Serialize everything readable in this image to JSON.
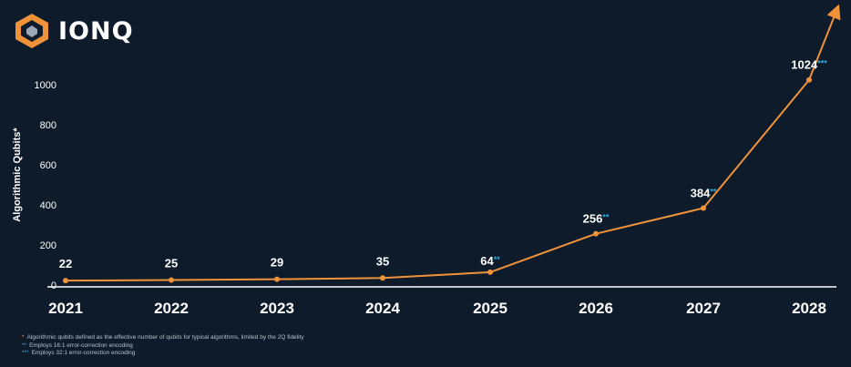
{
  "brand": {
    "name": "IONQ",
    "colors": {
      "background": "#0d1b2a",
      "line": "#f0923a",
      "asterisk": "#2fa9e0",
      "text": "#ffffff"
    }
  },
  "chart_data": {
    "type": "line",
    "x": [
      "2021",
      "2022",
      "2023",
      "2024",
      "2025",
      "2026",
      "2027",
      "2028"
    ],
    "series": [
      {
        "values": [
          22,
          25,
          29,
          35,
          64,
          256,
          384,
          1024
        ]
      }
    ],
    "data_labels": [
      "22",
      "25",
      "29",
      "35",
      "64",
      "256",
      "384",
      "1024"
    ],
    "label_marks": [
      "",
      "",
      "",
      "",
      "**",
      "**",
      "**",
      "***"
    ],
    "ylabel": "Algorithmic Qubits*",
    "yticks": [
      0,
      200,
      400,
      600,
      800,
      1000
    ],
    "ylim": [
      0,
      1000
    ],
    "grid": false,
    "arrow_at_end": true
  },
  "footnotes": [
    {
      "mark": "*",
      "text": "Algorithmic qubits defined as the effective number of qubits for typical algorithms, limited by the 2Q fidelity"
    },
    {
      "mark": "**",
      "text": "Employs 16:1 error-correction encoding"
    },
    {
      "mark": "***",
      "text": "Employs 32:1 error-correction encoding"
    }
  ]
}
